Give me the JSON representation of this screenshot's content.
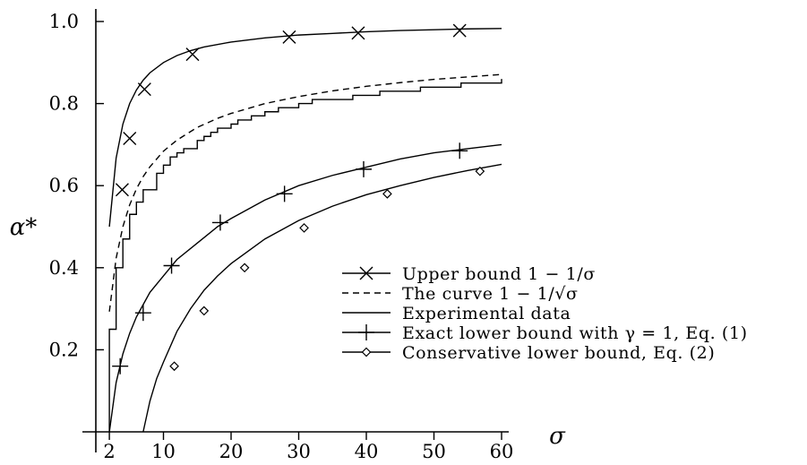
{
  "chart_data": {
    "type": "line",
    "x_label": "σ",
    "y_label": "α*",
    "xlim": [
      0,
      60
    ],
    "ylim": [
      0,
      1.0
    ],
    "x_ticks": [
      2,
      10,
      20,
      30,
      40,
      50,
      60
    ],
    "y_ticks": [
      0.2,
      0.4,
      0.6,
      0.8,
      1.0
    ],
    "x_tick_labels": [
      "2",
      "10",
      "20",
      "30",
      "40",
      "50",
      "60"
    ],
    "y_tick_labels": [
      "0.2",
      "0.4",
      "0.6",
      "0.8",
      "1.0"
    ],
    "grid": false,
    "legend_position": "lower-right",
    "series": [
      {
        "name": "Upper bound 1 − 1/σ",
        "style": "solid",
        "marker": "x",
        "x": [
          2,
          3,
          4,
          5,
          6,
          7,
          8,
          10,
          12,
          14,
          16,
          20,
          25,
          30,
          35,
          40,
          45,
          50,
          55,
          60
        ],
        "y": [
          0.5,
          0.667,
          0.75,
          0.8,
          0.833,
          0.857,
          0.875,
          0.9,
          0.917,
          0.929,
          0.938,
          0.95,
          0.96,
          0.967,
          0.971,
          0.975,
          0.978,
          0.98,
          0.982,
          0.983
        ],
        "marker_points": [
          [
            3.9,
            0.59
          ],
          [
            5.0,
            0.715
          ],
          [
            7.2,
            0.835
          ],
          [
            14.3,
            0.92
          ],
          [
            28.6,
            0.962
          ],
          [
            38.8,
            0.972
          ],
          [
            53.8,
            0.978
          ]
        ]
      },
      {
        "name": "The curve 1 − 1/√σ",
        "style": "dashed",
        "x": [
          2,
          3,
          4,
          5,
          6,
          7,
          8,
          10,
          12,
          15,
          18,
          20,
          25,
          30,
          35,
          40,
          45,
          50,
          55,
          60
        ],
        "y": [
          0.293,
          0.423,
          0.5,
          0.553,
          0.592,
          0.622,
          0.646,
          0.684,
          0.711,
          0.742,
          0.764,
          0.776,
          0.8,
          0.817,
          0.831,
          0.842,
          0.851,
          0.859,
          0.865,
          0.871
        ]
      },
      {
        "name": "Experimental data",
        "style": "step",
        "x": [
          2,
          3,
          4,
          5,
          6,
          7,
          8,
          9,
          10,
          11,
          12,
          13,
          14,
          15,
          16,
          17,
          18,
          19,
          20,
          21,
          22,
          23,
          24,
          25,
          26,
          27,
          28,
          29,
          30,
          32,
          34,
          36,
          38,
          40,
          42,
          44,
          46,
          48,
          50,
          52,
          54,
          56,
          58,
          60
        ],
        "y": [
          0.25,
          0.4,
          0.47,
          0.53,
          0.56,
          0.59,
          0.59,
          0.63,
          0.65,
          0.67,
          0.68,
          0.69,
          0.69,
          0.71,
          0.72,
          0.73,
          0.74,
          0.74,
          0.75,
          0.76,
          0.76,
          0.77,
          0.77,
          0.78,
          0.78,
          0.79,
          0.79,
          0.79,
          0.8,
          0.81,
          0.81,
          0.81,
          0.82,
          0.82,
          0.83,
          0.83,
          0.83,
          0.84,
          0.84,
          0.84,
          0.85,
          0.85,
          0.85,
          0.86
        ]
      },
      {
        "name": "Exact lower bound with γ = 1, Eq. (1)",
        "style": "solid",
        "marker": "+",
        "x": [
          2,
          3,
          4,
          5,
          6,
          7,
          8,
          10,
          12,
          15,
          18,
          20,
          25,
          30,
          35,
          40,
          45,
          50,
          55,
          60
        ],
        "y": [
          0.0,
          0.12,
          0.19,
          0.24,
          0.28,
          0.31,
          0.34,
          0.38,
          0.42,
          0.46,
          0.5,
          0.52,
          0.565,
          0.6,
          0.625,
          0.645,
          0.665,
          0.68,
          0.69,
          0.7
        ],
        "marker_points": [
          [
            3.6,
            0.16
          ],
          [
            7.0,
            0.29
          ],
          [
            11.2,
            0.405
          ],
          [
            18.4,
            0.51
          ],
          [
            27.9,
            0.58
          ],
          [
            39.6,
            0.64
          ],
          [
            53.8,
            0.685
          ]
        ]
      },
      {
        "name": "Conservative lower bound, Eq. (2)",
        "style": "solid",
        "marker": "diamond",
        "x": [
          7,
          8,
          9,
          10,
          12,
          14,
          16,
          18,
          20,
          25,
          30,
          35,
          40,
          45,
          50,
          55,
          60
        ],
        "y": [
          0.0,
          0.075,
          0.13,
          0.17,
          0.245,
          0.3,
          0.345,
          0.38,
          0.41,
          0.47,
          0.515,
          0.55,
          0.578,
          0.6,
          0.62,
          0.637,
          0.652
        ],
        "marker_points": [
          [
            11.6,
            0.16
          ],
          [
            16.0,
            0.295
          ],
          [
            22.0,
            0.4
          ],
          [
            30.8,
            0.497
          ],
          [
            43.1,
            0.58
          ],
          [
            56.8,
            0.635
          ]
        ]
      }
    ]
  }
}
